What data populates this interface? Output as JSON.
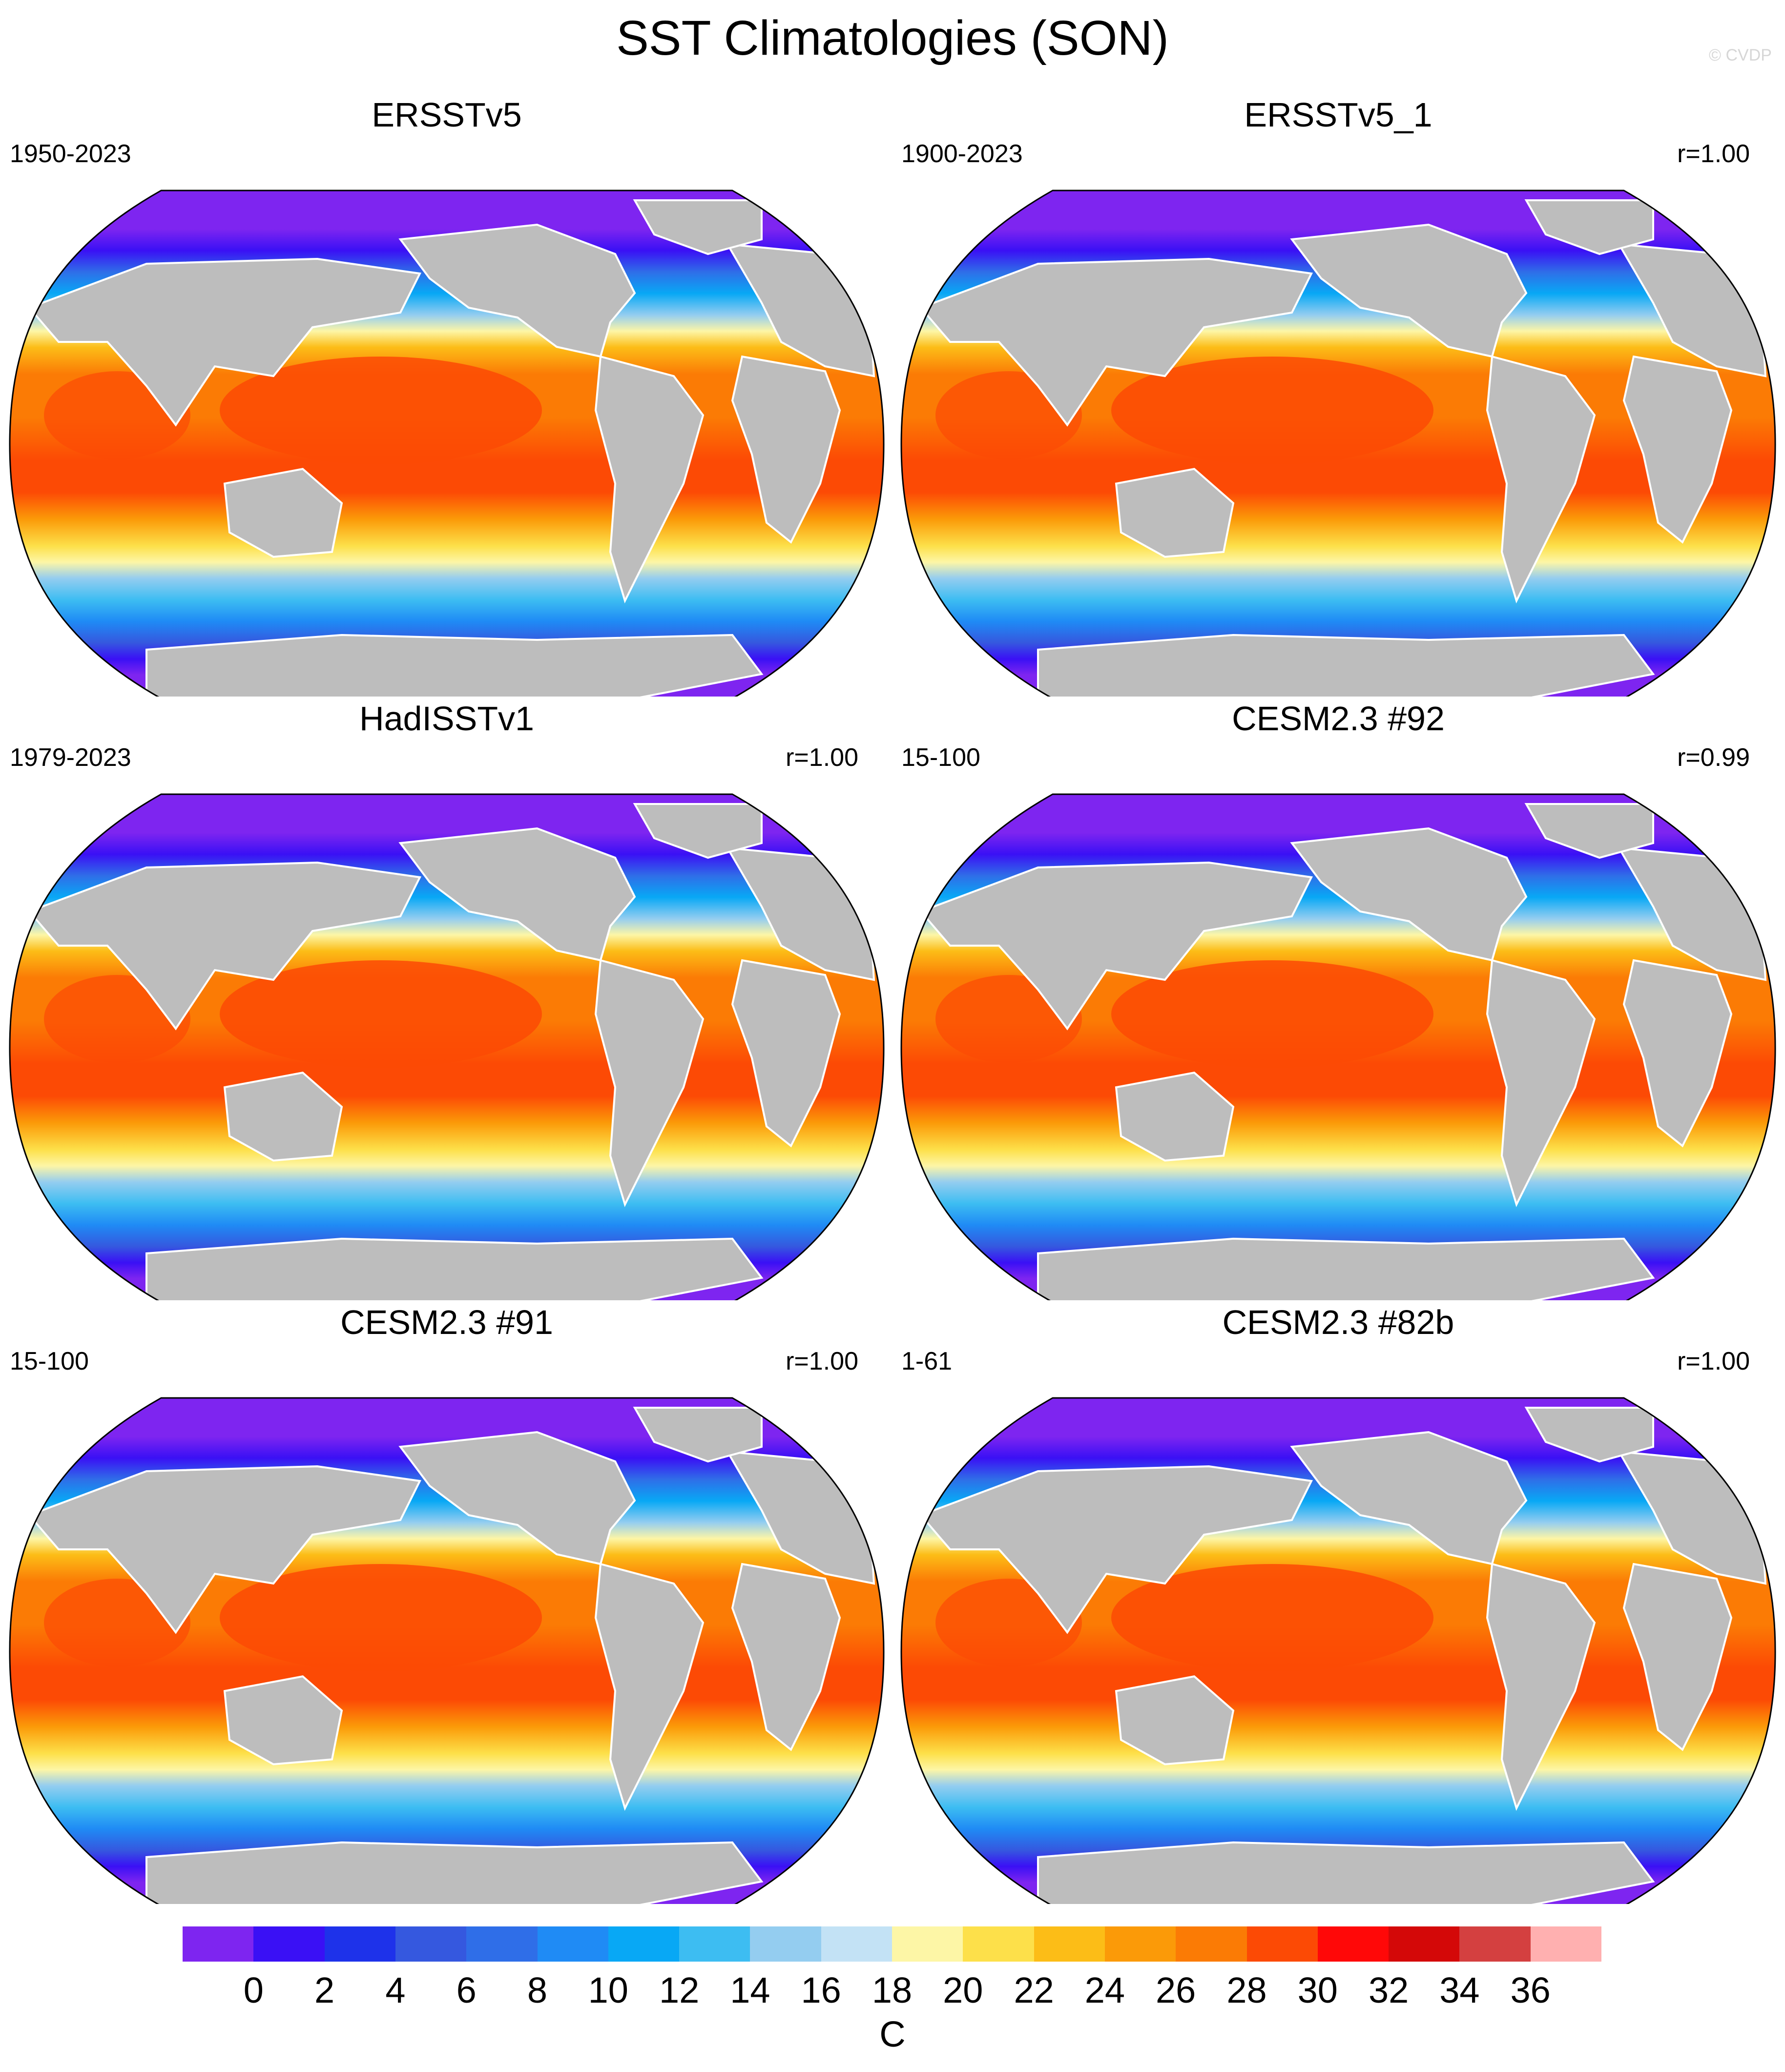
{
  "title": "SST Climatologies (SON)",
  "copyright": "© CVDP",
  "panels": [
    {
      "name": "ERSSTv5",
      "period": "1950-2023",
      "r": ""
    },
    {
      "name": "ERSSTv5_1",
      "period": "1900-2023",
      "r": "r=1.00"
    },
    {
      "name": "HadISSTv1",
      "period": "1979-2023",
      "r": "r=1.00"
    },
    {
      "name": "CESM2.3 #92",
      "period": "15-100",
      "r": "r=0.99"
    },
    {
      "name": "CESM2.3 #91",
      "period": "15-100",
      "r": "r=1.00"
    },
    {
      "name": "CESM2.3 #82b",
      "period": "1-61",
      "r": "r=1.00"
    }
  ],
  "colorbar": {
    "labels": [
      "0",
      "2",
      "4",
      "6",
      "8",
      "10",
      "12",
      "14",
      "16",
      "18",
      "20",
      "22",
      "24",
      "26",
      "28",
      "30",
      "32",
      "34",
      "36"
    ],
    "colors": [
      "#7e25f0",
      "#3a10f5",
      "#1e32ea",
      "#3558df",
      "#2f6ee8",
      "#1f8bf5",
      "#08a8f5",
      "#3dbdf2",
      "#94cdf0",
      "#c3e2f5",
      "#fdf6a6",
      "#fde04a",
      "#fcbd17",
      "#fb9a08",
      "#fb7b05",
      "#fc4a05",
      "#ff0808",
      "#d40808",
      "#d44040",
      "#ffb0b0"
    ],
    "unit": "C"
  },
  "chart_data": {
    "type": "heatmap",
    "title": "SST Climatologies (SON)",
    "projection": "Robinson (global)",
    "color_levels": [
      0,
      2,
      4,
      6,
      8,
      10,
      12,
      14,
      16,
      18,
      20,
      22,
      24,
      26,
      28,
      30,
      32,
      34,
      36
    ],
    "unit": "C",
    "panels": [
      {
        "name": "ERSSTv5",
        "period": "1950-2023",
        "pattern_correlation": null
      },
      {
        "name": "ERSSTv5_1",
        "period": "1900-2023",
        "pattern_correlation": 1.0
      },
      {
        "name": "HadISSTv1",
        "period": "1979-2023",
        "pattern_correlation": 1.0
      },
      {
        "name": "CESM2.3 #92",
        "period": "15-100",
        "pattern_correlation": 0.99
      },
      {
        "name": "CESM2.3 #91",
        "period": "15-100",
        "pattern_correlation": 1.0
      },
      {
        "name": "CESM2.3 #82b",
        "period": "1-61",
        "pattern_correlation": 1.0
      }
    ]
  }
}
